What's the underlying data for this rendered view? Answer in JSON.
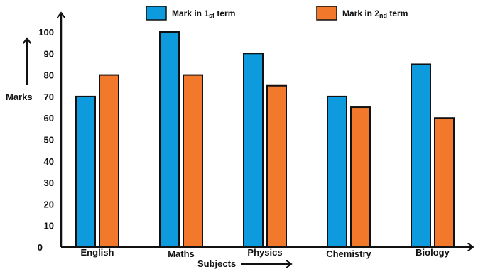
{
  "chart_data": {
    "type": "bar",
    "categories": [
      "English",
      "Maths",
      "Physics",
      "Chemistry",
      "Biology"
    ],
    "series": [
      {
        "name": "Mark in 1st term",
        "name_parts": [
          "Mark in 1",
          "st",
          " term"
        ],
        "color": "#0E9BDE",
        "values": [
          70,
          100,
          90,
          70,
          85
        ]
      },
      {
        "name": "Mark in 2nd term",
        "name_parts": [
          "Mark in 2",
          "nd",
          " term"
        ],
        "color": "#F2792B",
        "values": [
          80,
          80,
          75,
          65,
          60
        ]
      }
    ],
    "yticks": [
      0,
      10,
      20,
      30,
      40,
      50,
      60,
      70,
      80,
      90,
      100
    ],
    "ylim": [
      0,
      100
    ],
    "xlabel": "Subjects",
    "ylabel": "Marks",
    "legend": "top",
    "grid": false
  }
}
